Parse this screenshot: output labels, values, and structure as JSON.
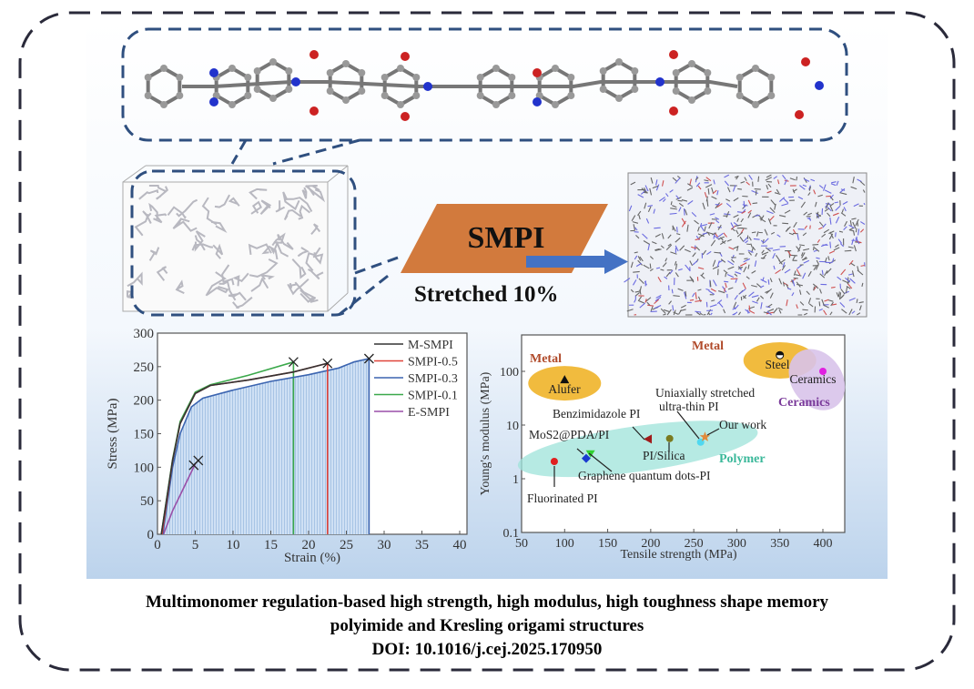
{
  "center_label": "SMPI",
  "stretch_label": "Stretched 10%",
  "caption": {
    "line1": "Multimonomer regulation-based high strength, high modulus, high toughness shape memory",
    "line2": "polyimide and Kresling origami structures",
    "doi": "DOI: 10.1016/j.cej.2025.170950"
  },
  "colors": {
    "accent_orange": "#d27a3d",
    "arrow_blue": "#4472c4",
    "border_dash": "#2a2a3a",
    "box_dash": "#2f4f7f"
  },
  "chart_data": [
    {
      "type": "line",
      "xlabel": "Strain (%)",
      "ylabel": "Stress (MPa)",
      "xlim": [
        0,
        40
      ],
      "ylim": [
        0,
        300
      ],
      "xticks": [
        0,
        5,
        10,
        15,
        20,
        25,
        30,
        35,
        40
      ],
      "yticks": [
        0,
        50,
        100,
        150,
        200,
        250,
        300
      ],
      "legend": "top-right",
      "series": [
        {
          "name": "M-SMPI",
          "color": "#333333",
          "points": [
            [
              0.5,
              0
            ],
            [
              2,
              110
            ],
            [
              3,
              165
            ],
            [
              5,
              210
            ],
            [
              7,
              222
            ],
            [
              12,
              230
            ],
            [
              18,
              242
            ],
            [
              22.5,
              255
            ]
          ]
        },
        {
          "name": "SMPI-0.5",
          "color": "#e0443a",
          "points": [
            [
              0.6,
              0
            ],
            [
              2,
              110
            ],
            [
              3,
              165
            ],
            [
              5,
              210
            ],
            [
              7,
              222
            ],
            [
              12,
              230
            ],
            [
              18,
              242
            ],
            [
              22.5,
              255
            ],
            [
              22.5,
              0
            ]
          ]
        },
        {
          "name": "SMPI-0.3",
          "color": "#3b64b0",
          "points": [
            [
              0.7,
              0
            ],
            [
              2,
              100
            ],
            [
              3,
              150
            ],
            [
              4.5,
              190
            ],
            [
              6,
              203
            ],
            [
              10,
              215
            ],
            [
              15,
              228
            ],
            [
              20,
              238
            ],
            [
              24,
              248
            ],
            [
              26,
              257
            ],
            [
              28,
              262
            ],
            [
              28,
              0
            ]
          ],
          "filled": true
        },
        {
          "name": "SMPI-0.1",
          "color": "#3aa84a",
          "points": [
            [
              0.5,
              0
            ],
            [
              2,
              112
            ],
            [
              3,
              168
            ],
            [
              5,
              212
            ],
            [
              7,
              223
            ],
            [
              12,
              237
            ],
            [
              18,
              257
            ],
            [
              18,
              0
            ]
          ]
        },
        {
          "name": "E-SMPI",
          "color": "#9a4fa8",
          "points": [
            [
              0.8,
              0
            ],
            [
              2,
              35
            ],
            [
              3.5,
              70
            ],
            [
              5,
              105
            ]
          ]
        }
      ],
      "break_marks": [
        [
          18,
          257
        ],
        [
          22.5,
          255
        ],
        [
          28,
          262
        ],
        [
          4.8,
          103
        ],
        [
          5.4,
          110
        ]
      ]
    },
    {
      "type": "scatter",
      "xlabel": "Tensile strength (MPa)",
      "ylabel": "Young's modulus (MPa)",
      "xlim": [
        50,
        425
      ],
      "ylim": [
        0.1,
        500
      ],
      "yscale": "log",
      "xticks": [
        50,
        100,
        150,
        200,
        250,
        300,
        350,
        400
      ],
      "yticks": [
        {
          "v": 0.1,
          "label": "0.1"
        },
        {
          "v": 1,
          "label": "1"
        },
        {
          "v": 10,
          "label": "10"
        },
        {
          "v": 100,
          "label": "100"
        }
      ],
      "regions": [
        {
          "label": "Metal",
          "color": "#f0b429",
          "label_color": "#b04a2a",
          "cx": 100,
          "cy": 60
        },
        {
          "label": "Metal",
          "color": "#f0b429",
          "label_color": "#b04a2a",
          "cx": 350,
          "cy": 160
        },
        {
          "label": "Ceramics",
          "color": "#d8c3ea",
          "label_color": "#7a3a9a",
          "cx": 395,
          "cy": 110
        },
        {
          "label": "Polymer",
          "color": "#9ee3da",
          "label_color": "#3ab89a",
          "cx": 185,
          "cy": 3.6
        }
      ],
      "points": [
        {
          "label": "Fluorinated PI",
          "x": 88,
          "y": 2.1,
          "marker": "circle",
          "color": "#e02020"
        },
        {
          "label": "MoS2@PDA/PI",
          "x": 125,
          "y": 2.4,
          "marker": "diamond",
          "color": "#1a3ad0"
        },
        {
          "label": "Graphene quantum dots-PI",
          "x": 130,
          "y": 2.9,
          "marker": "triangle-down",
          "color": "#30d030"
        },
        {
          "label": "Benzimidazole PI",
          "x": 197,
          "y": 5.5,
          "marker": "triangle-left",
          "color": "#a01a1a"
        },
        {
          "label": "PI/Silica",
          "x": 222,
          "y": 5.6,
          "marker": "circle",
          "color": "#7a7a20"
        },
        {
          "label": "Uniaxially stretched ultra-thin PI",
          "x": 258,
          "y": 4.8,
          "marker": "circle",
          "color": "#50d8f0"
        },
        {
          "label": "Our work",
          "x": 263,
          "y": 6,
          "marker": "star",
          "color": "#e08a3a"
        },
        {
          "label": "Alufer",
          "x": 100,
          "y": 70,
          "marker": "triangle-up",
          "color": "#111111"
        },
        {
          "label": "Steel",
          "x": 350,
          "y": 200,
          "marker": "half-circle",
          "color": "#111111"
        },
        {
          "label": "Ceramics",
          "x": 400,
          "y": 100,
          "marker": "circle",
          "color": "#e020e0"
        }
      ]
    }
  ]
}
